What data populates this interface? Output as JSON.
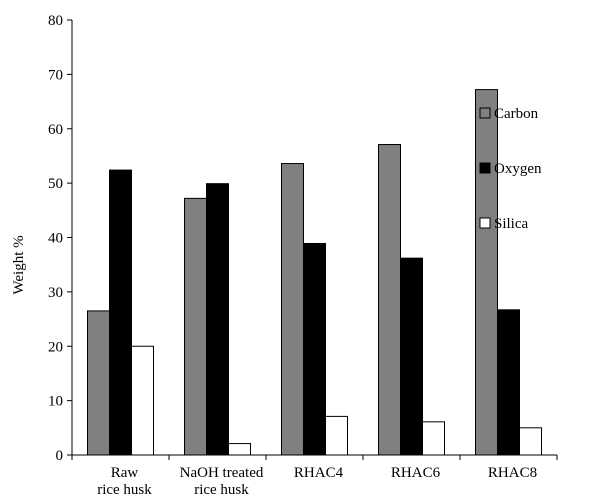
{
  "chart_data": {
    "type": "bar",
    "categories": [
      [
        "Raw",
        "rice husk"
      ],
      [
        "NaOH treated",
        "rice husk"
      ],
      [
        "RHAC4"
      ],
      [
        "RHAC6"
      ],
      [
        "RHAC8"
      ]
    ],
    "series": [
      {
        "name": "Carbon",
        "color": "#808080",
        "values": [
          26.5,
          47.2,
          53.6,
          57.1,
          67.2
        ]
      },
      {
        "name": "Oxygen",
        "color": "#000000",
        "values": [
          52.4,
          49.9,
          38.9,
          36.2,
          26.7
        ]
      },
      {
        "name": "Silica",
        "color": "#ffffff",
        "values": [
          20.0,
          2.1,
          7.1,
          6.1,
          5.0
        ]
      }
    ],
    "ylabel": "Weight %",
    "xlabel": "",
    "title": "",
    "ylim": [
      0,
      80
    ],
    "yticks": [
      0,
      10,
      20,
      30,
      40,
      50,
      60,
      70,
      80
    ],
    "grid": false,
    "legend_position": "right"
  }
}
